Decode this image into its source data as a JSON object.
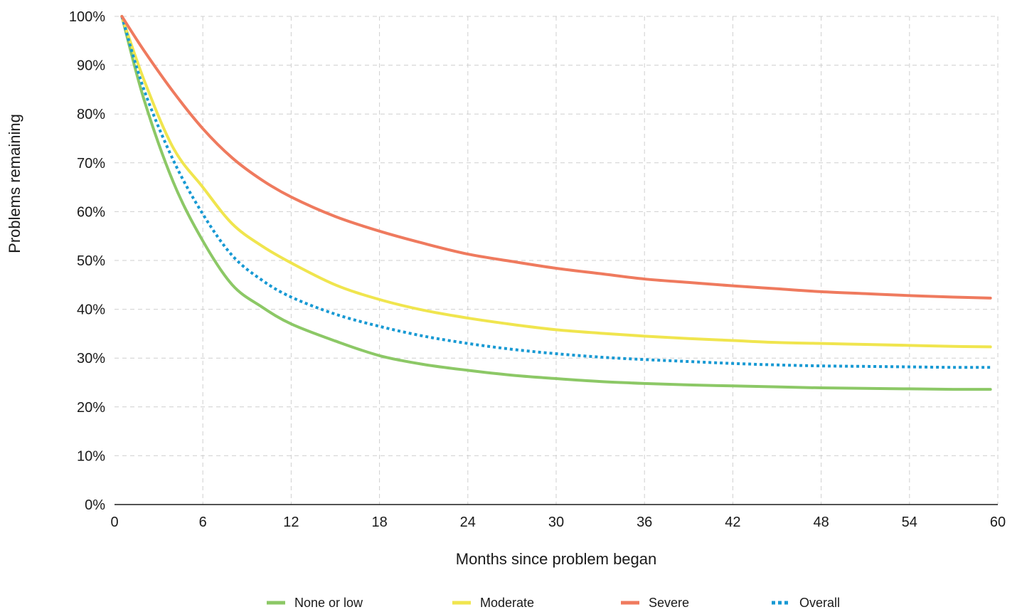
{
  "chart_data": {
    "type": "line",
    "xlabel": "Months since problem began",
    "ylabel": "Problems remaining",
    "xlim": [
      0,
      60
    ],
    "ylim": [
      0,
      100
    ],
    "x_ticks": [
      "0",
      "6",
      "12",
      "18",
      "24",
      "30",
      "36",
      "42",
      "48",
      "54",
      "60"
    ],
    "y_ticks": [
      "0%",
      "10%",
      "20%",
      "30%",
      "40%",
      "50%",
      "60%",
      "70%",
      "80%",
      "90%",
      "100%"
    ],
    "grid": true,
    "legend_position": "bottom",
    "x": [
      0.5,
      2,
      4,
      6,
      8,
      10,
      12,
      15,
      18,
      21,
      24,
      27,
      30,
      33,
      36,
      39,
      42,
      45,
      48,
      51,
      54,
      57,
      59.5
    ],
    "series": [
      {
        "name": "None or low",
        "color": "#8cc866",
        "style": "solid",
        "values": [
          100,
          83,
          66,
          54,
          45,
          40.5,
          37,
          33.5,
          30.5,
          28.7,
          27.5,
          26.5,
          25.8,
          25.2,
          24.8,
          24.5,
          24.3,
          24.1,
          23.9,
          23.8,
          23.7,
          23.6,
          23.6
        ]
      },
      {
        "name": "Moderate",
        "color": "#f0e54e",
        "style": "solid",
        "values": [
          100,
          87,
          73,
          65,
          57.5,
          53,
          49.5,
          45,
          42,
          39.8,
          38.2,
          36.9,
          35.8,
          35.1,
          34.5,
          34,
          33.6,
          33.2,
          33,
          32.8,
          32.6,
          32.4,
          32.3
        ]
      },
      {
        "name": "Severe",
        "color": "#ef7a5e",
        "style": "solid",
        "values": [
          100,
          93,
          84.5,
          77,
          71,
          66.5,
          63,
          59,
          56,
          53.5,
          51.3,
          49.8,
          48.4,
          47.3,
          46.2,
          45.5,
          44.8,
          44.2,
          43.6,
          43.2,
          42.8,
          42.5,
          42.3
        ]
      },
      {
        "name": "Overall",
        "color": "#1799d3",
        "style": "dotted",
        "values": [
          100,
          85,
          70.5,
          59.5,
          51,
          46,
          42.5,
          39,
          36.5,
          34.5,
          33,
          31.8,
          30.9,
          30.2,
          29.7,
          29.3,
          28.9,
          28.6,
          28.4,
          28.3,
          28.2,
          28.1,
          28.1
        ]
      }
    ]
  }
}
